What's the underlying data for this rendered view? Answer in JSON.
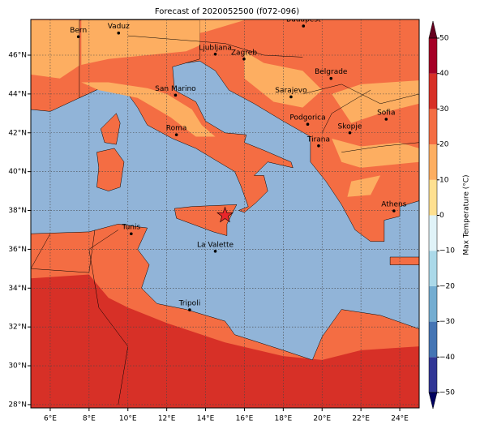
{
  "title": "Forecast of 2020052500 (f072-096)",
  "cities": [
    "Bern",
    "Vaduz",
    "Budapest",
    "Ljubljana",
    "Zagreb",
    "Belgrade",
    "Sarajevo",
    "San Marino",
    "Roma",
    "Podgorica",
    "Sofia",
    "Skopje",
    "Tirana",
    "Athens",
    "Tunis",
    "La Valette",
    "Tripoli"
  ],
  "lon_ticks": [
    {
      "value": 6,
      "label": "6°E"
    },
    {
      "value": 8,
      "label": "8°E"
    },
    {
      "value": 10,
      "label": "10°E"
    },
    {
      "value": 12,
      "label": "12°E"
    },
    {
      "value": 14,
      "label": "14°E"
    },
    {
      "value": 16,
      "label": "16°E"
    },
    {
      "value": 18,
      "label": "18°E"
    },
    {
      "value": 20,
      "label": "20°E"
    },
    {
      "value": 22,
      "label": "22°E"
    },
    {
      "value": 24,
      "label": "24°E"
    }
  ],
  "lat_ticks": [
    {
      "value": 28,
      "label": "28°N"
    },
    {
      "value": 30,
      "label": "30°N"
    },
    {
      "value": 32,
      "label": "32°N"
    },
    {
      "value": 34,
      "label": "34°N"
    },
    {
      "value": 36,
      "label": "36°N"
    },
    {
      "value": 38,
      "label": "38°N"
    },
    {
      "value": 40,
      "label": "40°N"
    },
    {
      "value": 42,
      "label": "42°N"
    },
    {
      "value": 44,
      "label": "44°N"
    },
    {
      "value": 46,
      "label": "46°N"
    }
  ],
  "colorbar": {
    "label": "Max Temperature (°C)",
    "ticks": [
      {
        "value": -50,
        "label": "−50"
      },
      {
        "value": -40,
        "label": "−40"
      },
      {
        "value": -30,
        "label": "−30"
      },
      {
        "value": -20,
        "label": "−20"
      },
      {
        "value": -10,
        "label": "−10"
      },
      0,
      10,
      20,
      30,
      40,
      50
    ],
    "colors": [
      "#313695",
      "#4575b4",
      "#74add1",
      "#abd9e9",
      "#e0f3f8",
      "#fee090",
      "#fdae61",
      "#f46d43",
      "#d73027",
      "#a50026"
    ]
  }
}
